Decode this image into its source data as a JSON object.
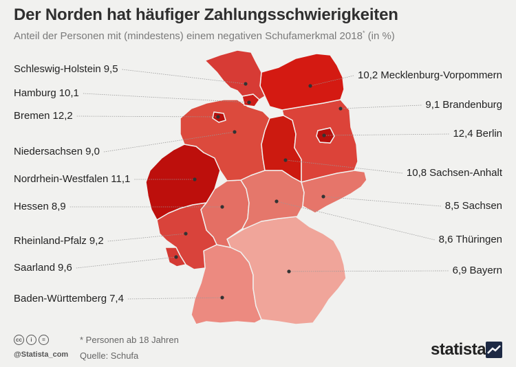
{
  "title": "Der Norden hat häufiger Zahlungsschwierigkeiten",
  "subtitle": "Anteil der Personen mit (mindestens) einem negativen Schufamerkmal 2018",
  "subtitle_mark": "*",
  "subtitle_unit": "(in %)",
  "colors": {
    "background": "#f1f1ef",
    "leader": "#999999",
    "state_border": "#f1f1ef"
  },
  "states": [
    {
      "id": "schleswig-holstein",
      "name": "Schleswig-Holstein",
      "value": "9,5",
      "color": "#d73b35"
    },
    {
      "id": "hamburg",
      "name": "Hamburg",
      "value": "10,1",
      "color": "#cc1d18"
    },
    {
      "id": "bremen",
      "name": "Bremen",
      "value": "12,2",
      "color": "#b80f0c"
    },
    {
      "id": "niedersachsen",
      "name": "Niedersachsen",
      "value": "9,0",
      "color": "#dc4a3d"
    },
    {
      "id": "nordrhein-westfalen",
      "name": "Nordrhein-Westfalen",
      "value": "11,1",
      "color": "#bd0f0c"
    },
    {
      "id": "hessen",
      "name": "Hessen",
      "value": "8,9",
      "color": "#e46f64"
    },
    {
      "id": "rheinland-pfalz",
      "name": "Rheinland-Pfalz",
      "value": "9,2",
      "color": "#d9433b"
    },
    {
      "id": "saarland",
      "name": "Saarland",
      "value": "9,6",
      "color": "#d43a33"
    },
    {
      "id": "baden-wuerttemberg",
      "name": "Baden-Württemberg",
      "value": "7,4",
      "color": "#ec8a80"
    },
    {
      "id": "mecklenburg-vorpommern",
      "name": "Mecklenburg-Vorpommern",
      "value": "10,2",
      "color": "#d41a12"
    },
    {
      "id": "brandenburg",
      "name": "Brandenburg",
      "value": "9,1",
      "color": "#dc4339"
    },
    {
      "id": "berlin",
      "name": "Berlin",
      "value": "12,4",
      "color": "#b50f0c"
    },
    {
      "id": "sachsen-anhalt",
      "name": "Sachsen-Anhalt",
      "value": "10,8",
      "color": "#cc1a10"
    },
    {
      "id": "sachsen",
      "name": "Sachsen",
      "value": "8,5",
      "color": "#e6756a"
    },
    {
      "id": "thueringen",
      "name": "Thüringen",
      "value": "8,6",
      "color": "#e5776b"
    },
    {
      "id": "bayern",
      "name": "Bayern",
      "value": "6,9",
      "color": "#f0a59a"
    }
  ],
  "footer": {
    "note": "* Personen ab 18 Jahren",
    "source": "Quelle: Schufa",
    "handle": "@Statista_com",
    "brand": "statista",
    "cc_icons": [
      "cc",
      "i",
      "="
    ]
  }
}
